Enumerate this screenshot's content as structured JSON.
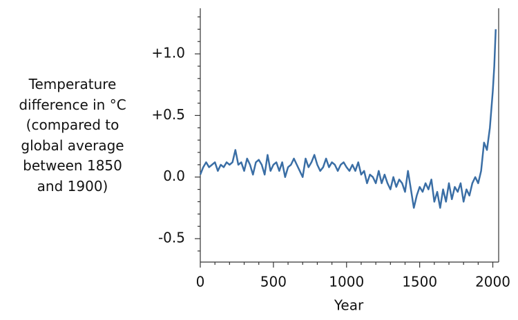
{
  "chart_data": {
    "type": "line",
    "y_label": [
      "Temperature",
      "difference in °C",
      "(compared to",
      "global average",
      "between 1850",
      "and 1900)"
    ],
    "x_label": "Year",
    "xlim": [
      0,
      2040
    ],
    "ylim": [
      -0.69,
      1.37
    ],
    "xticks": [
      0,
      500,
      1000,
      1500,
      2000
    ],
    "yticks": [
      {
        "value": -0.5,
        "label": "-0.5"
      },
      {
        "value": 0,
        "label": "0.0"
      },
      {
        "value": 0.5,
        "label": "+0.5"
      },
      {
        "value": 1,
        "label": "+1.0"
      }
    ],
    "xminorticks": [
      100,
      200,
      300,
      400,
      600,
      700,
      800,
      900,
      1100,
      1200,
      1300,
      1400,
      1600,
      1700,
      1800,
      1900
    ],
    "yminorticks": [
      -0.6,
      -0.4,
      -0.3,
      -0.2,
      -0.1,
      0.1,
      0.2,
      0.3,
      0.4,
      0.6,
      0.7,
      0.8,
      0.9,
      1.1,
      1.2,
      1.3
    ],
    "x": [
      0,
      20,
      40,
      60,
      80,
      100,
      120,
      140,
      160,
      180,
      200,
      220,
      240,
      260,
      280,
      300,
      320,
      340,
      360,
      380,
      400,
      420,
      440,
      460,
      480,
      500,
      520,
      540,
      560,
      580,
      600,
      620,
      640,
      660,
      680,
      700,
      720,
      740,
      760,
      780,
      800,
      820,
      840,
      860,
      880,
      900,
      920,
      940,
      960,
      980,
      1000,
      1020,
      1040,
      1060,
      1080,
      1100,
      1120,
      1140,
      1160,
      1180,
      1200,
      1220,
      1240,
      1260,
      1280,
      1300,
      1320,
      1340,
      1360,
      1380,
      1400,
      1420,
      1440,
      1460,
      1480,
      1500,
      1520,
      1540,
      1560,
      1580,
      1600,
      1620,
      1640,
      1660,
      1680,
      1700,
      1720,
      1740,
      1760,
      1780,
      1800,
      1820,
      1840,
      1860,
      1880,
      1900,
      1920,
      1940,
      1960,
      1980,
      2000,
      2010,
      2020
    ],
    "series": [
      {
        "color": "#3a6ea5",
        "values": [
          0.02,
          0.08,
          0.12,
          0.08,
          0.1,
          0.12,
          0.05,
          0.1,
          0.08,
          0.12,
          0.1,
          0.12,
          0.22,
          0.1,
          0.12,
          0.05,
          0.15,
          0.1,
          0.02,
          0.12,
          0.14,
          0.1,
          0.02,
          0.18,
          0.05,
          0.1,
          0.12,
          0.05,
          0.12,
          0.0,
          0.08,
          0.1,
          0.15,
          0.1,
          0.05,
          0.0,
          0.15,
          0.08,
          0.12,
          0.18,
          0.1,
          0.05,
          0.08,
          0.15,
          0.08,
          0.12,
          0.1,
          0.05,
          0.1,
          0.12,
          0.08,
          0.05,
          0.1,
          0.05,
          0.12,
          0.02,
          0.05,
          -0.05,
          0.02,
          0.0,
          -0.05,
          0.05,
          -0.05,
          0.02,
          -0.05,
          -0.1,
          0.0,
          -0.08,
          -0.02,
          -0.05,
          -0.12,
          0.05,
          -0.1,
          -0.25,
          -0.15,
          -0.08,
          -0.12,
          -0.05,
          -0.1,
          -0.02,
          -0.2,
          -0.12,
          -0.25,
          -0.1,
          -0.2,
          -0.05,
          -0.18,
          -0.08,
          -0.12,
          -0.05,
          -0.2,
          -0.1,
          -0.15,
          -0.05,
          0.0,
          -0.05,
          0.05,
          0.28,
          0.22,
          0.4,
          0.7,
          0.9,
          1.2
        ]
      }
    ]
  }
}
